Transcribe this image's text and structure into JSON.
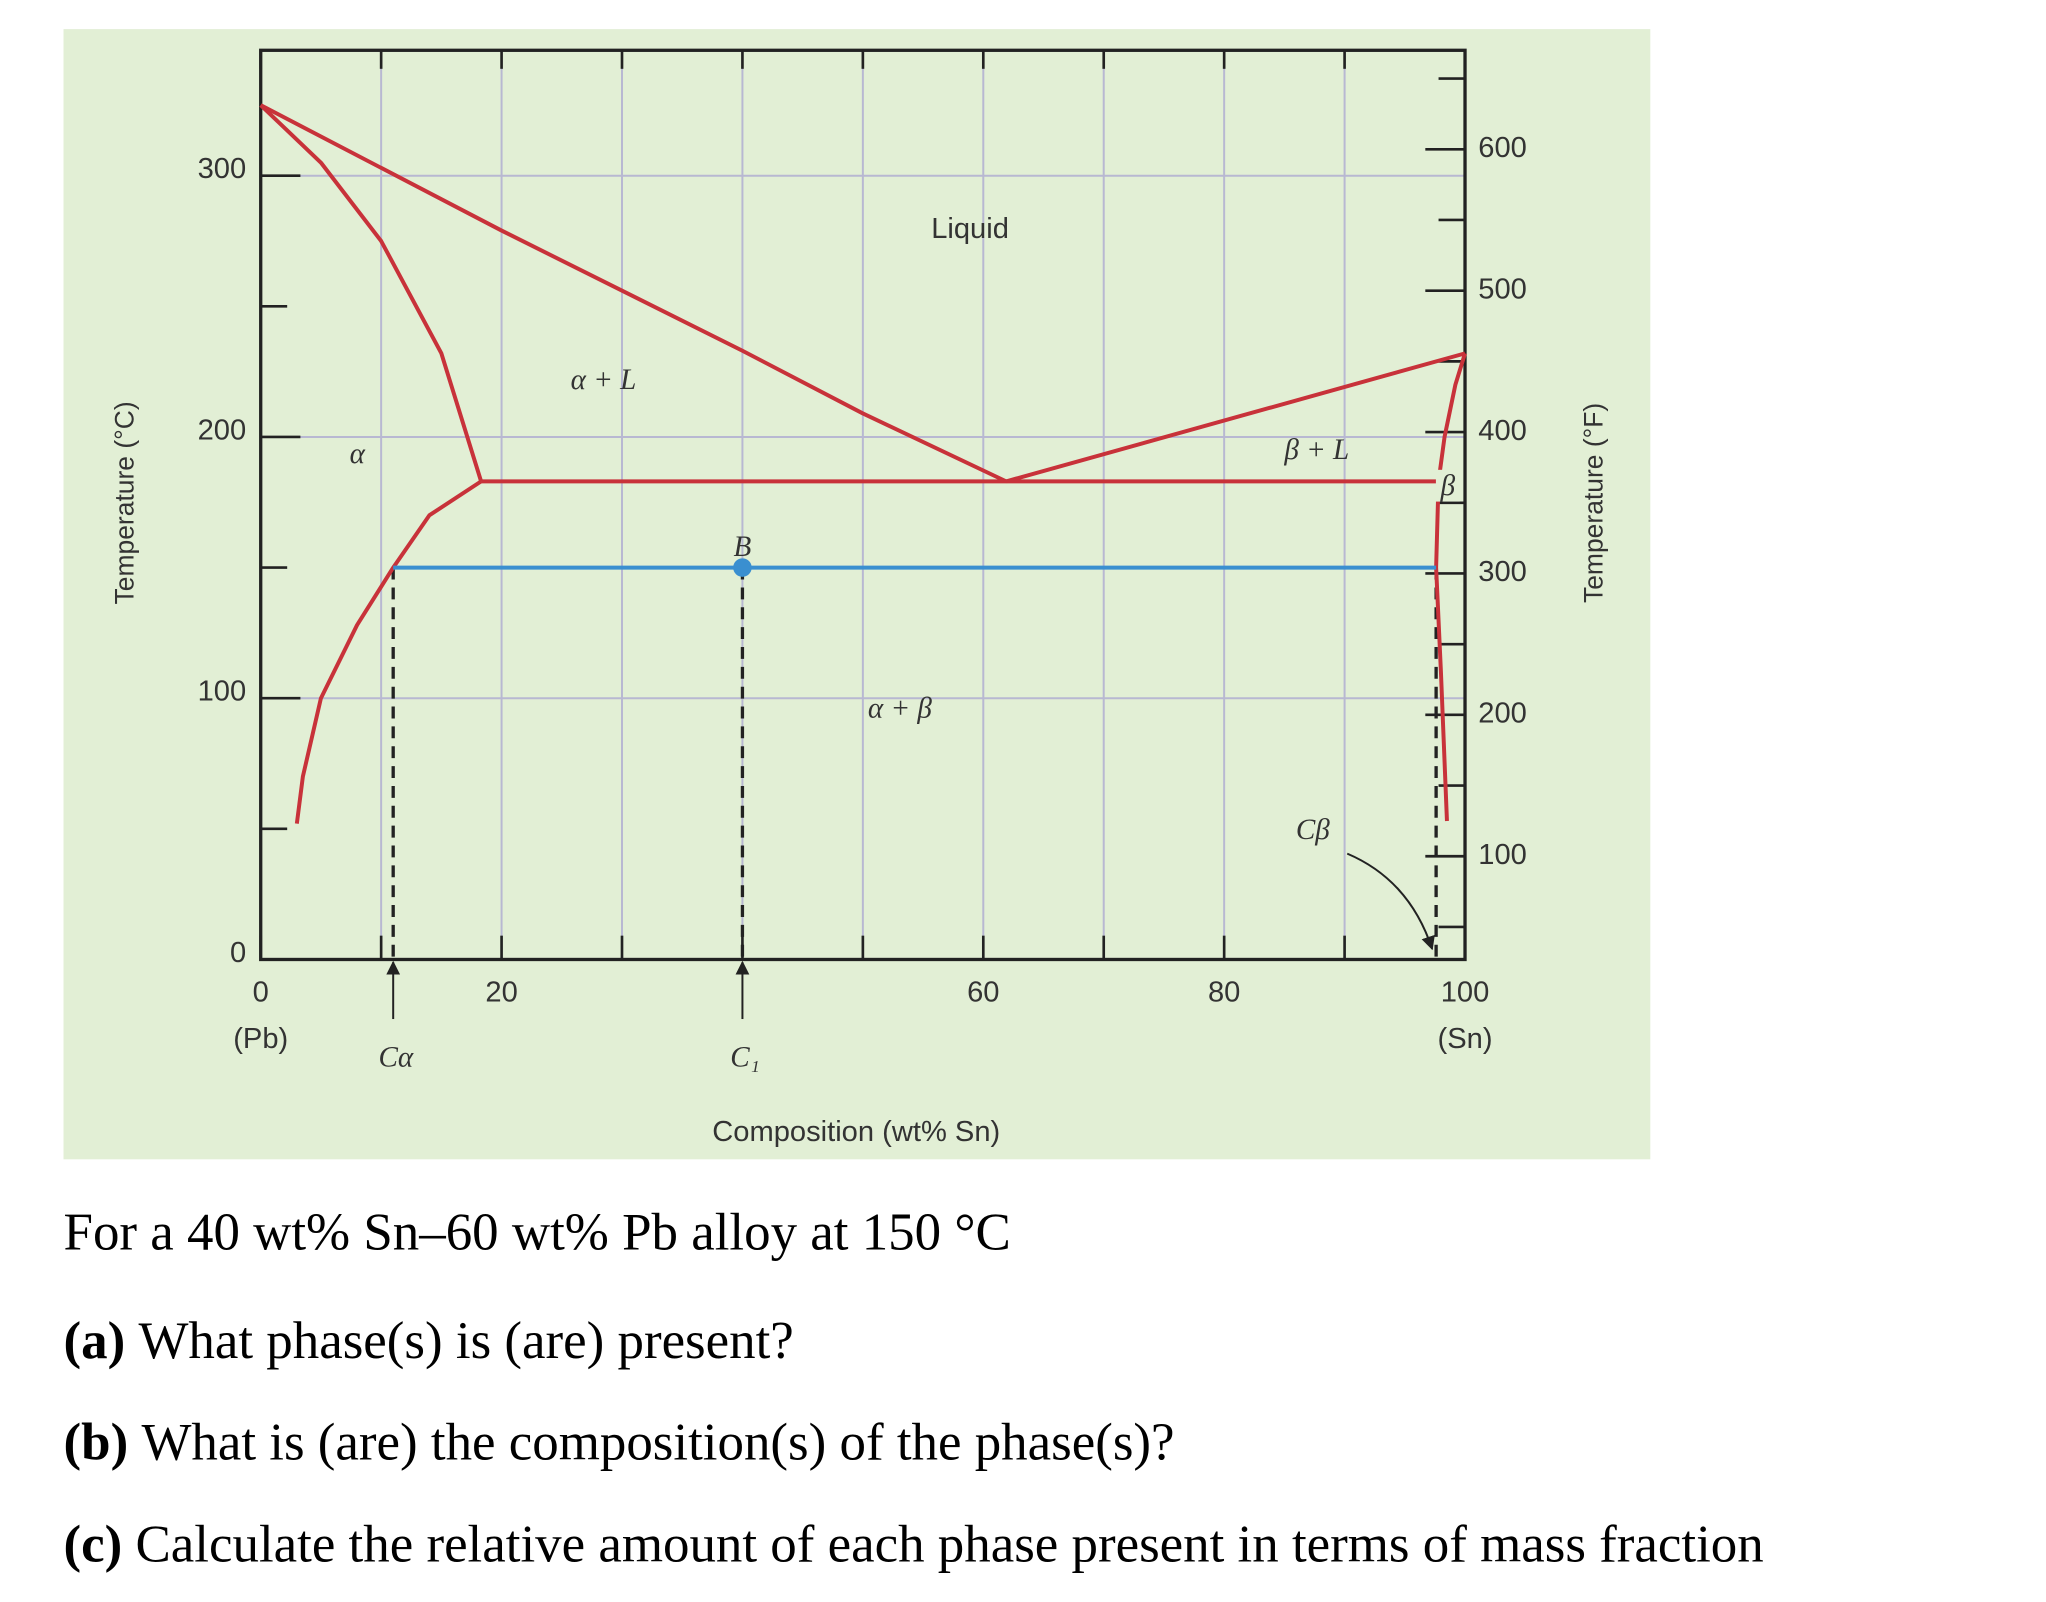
{
  "chart_data": {
    "type": "line",
    "xlabel": "Composition (wt% Sn)",
    "ylabel": "Temperature (°C)",
    "y2label": "Temperature (°F)",
    "x_end_labels": [
      "(Pb)",
      "(Sn)"
    ],
    "xlim": [
      0,
      100
    ],
    "xticks": [
      0,
      20,
      60,
      80,
      100
    ],
    "xminor": [
      10,
      30,
      40,
      50,
      70,
      90
    ],
    "ylim": [
      0,
      348
    ],
    "yticks": [
      0,
      100,
      200,
      300
    ],
    "yminor": [
      50,
      150,
      250
    ],
    "y2lim": [
      27,
      670
    ],
    "y2ticks": [
      100,
      200,
      300,
      400,
      500,
      600
    ],
    "y2minor": [
      50,
      150,
      250,
      350,
      450,
      550,
      650
    ],
    "grid": true,
    "series": [
      {
        "color": "#c8323a",
        "x": [
          0,
          20,
          40,
          50,
          61.9
        ],
        "values": [
          327,
          279,
          233,
          209,
          183
        ]
      },
      {
        "color": "#c8323a",
        "x": [
          61.9,
          100
        ],
        "values": [
          183,
          232
        ]
      },
      {
        "color": "#c8323a",
        "x": [
          0,
          5,
          10,
          15,
          18.3
        ],
        "values": [
          327,
          305,
          275,
          232,
          183
        ]
      },
      {
        "color": "#c8323a",
        "x": [
          18.3,
          14,
          11,
          8,
          5,
          3.5,
          3
        ],
        "values": [
          183,
          170,
          150,
          128,
          100,
          70,
          52
        ]
      },
      {
        "color": "#c8323a",
        "x": [
          18.3,
          97.8
        ],
        "values": [
          183,
          183
        ]
      },
      {
        "color": "#c8323a",
        "x": [
          97.8,
          98.3,
          99.2,
          100
        ],
        "values": [
          183,
          200,
          220,
          232
        ]
      },
      {
        "color": "#c8323a",
        "x": [
          97.8,
          97.6,
          98,
          98.5
        ],
        "values": [
          183,
          150,
          110,
          53
        ]
      },
      {
        "color": "#3a8fd0",
        "x": [
          11,
          97.6
        ],
        "values": [
          150,
          150
        ]
      }
    ],
    "point": {
      "label": "B",
      "x": 40,
      "y": 150,
      "color": "#3a8fd0"
    },
    "composition_markers": [
      {
        "label": "Cα",
        "x": 11
      },
      {
        "label": "C₁",
        "x": 40
      },
      {
        "label": "Cβ",
        "x": 97.6
      }
    ],
    "annotations": [
      "Liquid",
      "α + L",
      "α",
      "β + L",
      "β",
      "α + β"
    ]
  },
  "question": {
    "intro": "For a 40 wt% Sn–60 wt% Pb alloy at 150 °C",
    "items": [
      {
        "label": "(a)",
        "text": "What phase(s) is (are) present?"
      },
      {
        "label": "(b)",
        "text": "What is (are) the composition(s) of the phase(s)?"
      },
      {
        "label": "(c)",
        "text": "Calculate the relative amount of each phase present in terms of mass fraction"
      }
    ]
  }
}
